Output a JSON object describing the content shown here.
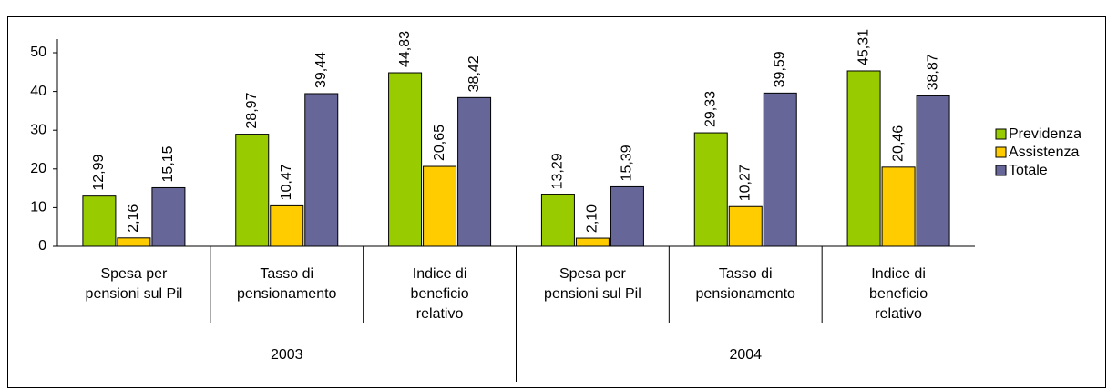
{
  "chart_data": {
    "type": "bar",
    "categories": [
      [
        "Spesa per",
        "pensioni sul Pil"
      ],
      [
        "Tasso di",
        "pensionamento"
      ],
      [
        "Indice di",
        "beneficio",
        "relativo"
      ],
      [
        "Spesa per",
        "pensioni sul Pil"
      ],
      [
        "Tasso di",
        "pensionamento"
      ],
      [
        "Indice di",
        "beneficio",
        "relativo"
      ]
    ],
    "group_labels": [
      "2003",
      "2004"
    ],
    "series": [
      {
        "name": "Previdenza",
        "color": "#99cc00",
        "values": [
          12.99,
          28.97,
          44.83,
          13.29,
          29.33,
          45.31
        ],
        "value_labels": [
          "12,99",
          "28,97",
          "44,83",
          "13,29",
          "29,33",
          "45,31"
        ]
      },
      {
        "name": "Assistenza",
        "color": "#ffcc00",
        "values": [
          2.16,
          10.47,
          20.65,
          2.1,
          10.27,
          20.46
        ],
        "value_labels": [
          "2,16",
          "10,47",
          "20,65",
          "2,10",
          "10,27",
          "20,46"
        ]
      },
      {
        "name": "Totale",
        "color": "#666699",
        "values": [
          15.15,
          39.44,
          38.42,
          15.39,
          39.59,
          38.87
        ],
        "value_labels": [
          "15,15",
          "39,44",
          "38,42",
          "15,39",
          "39,59",
          "38,87"
        ]
      }
    ],
    "ylim": [
      0,
      50
    ],
    "yticks": [
      0,
      10,
      20,
      30,
      40,
      50
    ],
    "legend": "right"
  }
}
